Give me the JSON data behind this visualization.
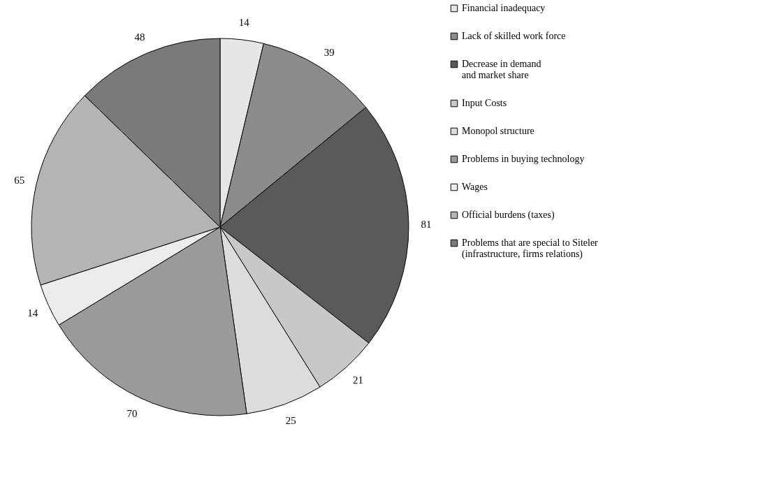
{
  "chart_data": {
    "type": "pie",
    "categories": [
      "Financial inadequacy",
      "Lack of skilled work force",
      "Decrease in demand\nand market share",
      "Input Costs",
      "Monopol structure",
      "Problems in buying  technology",
      "Wages",
      "Official burdens (taxes)",
      "Problems that are special to Siteler\n(infrastructure, firms relations)"
    ],
    "values": [
      14,
      39,
      81,
      21,
      25,
      70,
      14,
      65,
      48
    ],
    "colors": [
      "#e6e6e6",
      "#8c8c8c",
      "#5a5a5a",
      "#c8c8c8",
      "#dcdcdc",
      "#9a9a9a",
      "#ececec",
      "#b4b4b4",
      "#7a7a7a"
    ],
    "data_labels": true,
    "legend": "right"
  }
}
